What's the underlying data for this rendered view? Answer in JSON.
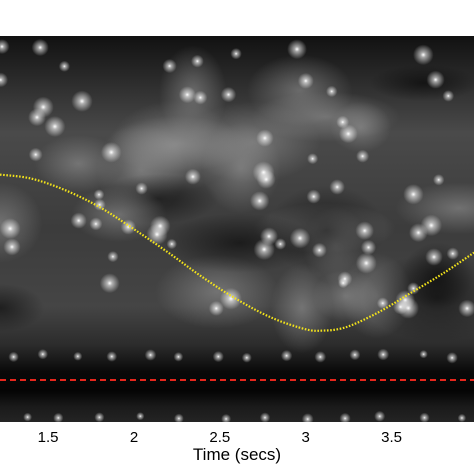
{
  "chart_data": {
    "type": "heatmap",
    "title": "",
    "xlabel": "Time (secs)",
    "ylabel": "",
    "xlim": [
      1.22,
      3.98
    ],
    "ylim": [
      0,
      1
    ],
    "x_ticks": [
      1.5,
      2,
      2.5,
      3,
      3.5
    ],
    "x_tick_labels": [
      "1.5",
      "2",
      "2.5",
      "3",
      "3.5"
    ],
    "background_colormap": "grayscale",
    "grid": false,
    "series": [
      {
        "style": "dotted",
        "color": "#f2e21b",
        "x": [
          1.22,
          1.4,
          1.6,
          1.8,
          2.0,
          2.2,
          2.4,
          2.6,
          2.8,
          3.0,
          3.1,
          3.2,
          3.3,
          3.45,
          3.6,
          3.8,
          3.98
        ],
        "y": [
          0.69,
          0.675,
          0.63,
          0.565,
          0.48,
          0.39,
          0.295,
          0.21,
          0.14,
          0.095,
          0.09,
          0.097,
          0.12,
          0.17,
          0.23,
          0.31,
          0.39
        ]
      },
      {
        "style": "dashed",
        "color": "#e8261c",
        "x": [
          1.22,
          3.98
        ],
        "y": [
          -0.1,
          -0.1
        ]
      }
    ]
  }
}
